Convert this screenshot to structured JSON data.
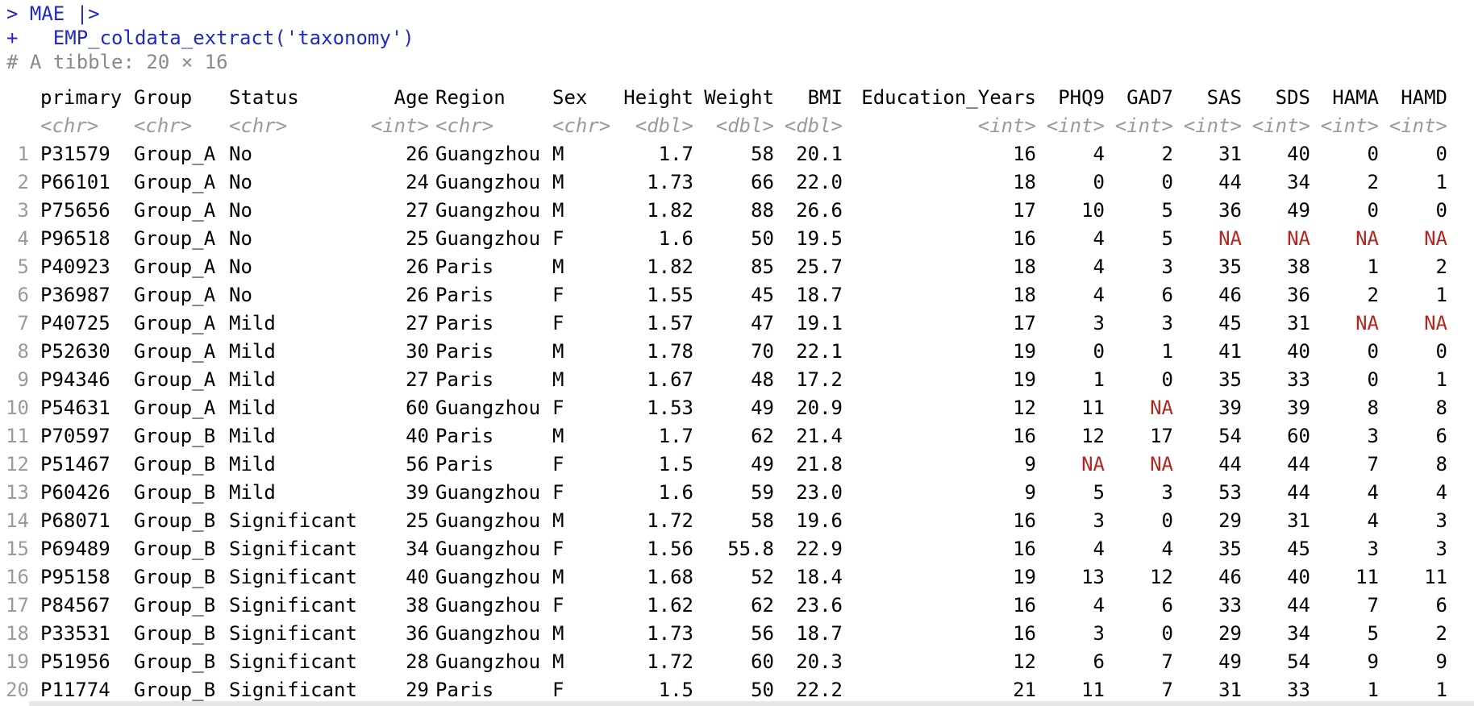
{
  "console": {
    "prompt_line": "> MAE |>",
    "continuation_line": "+   EMP_coldata_extract('taxonomy')",
    "tibble_header": "# A tibble: 20 × 16"
  },
  "table": {
    "columns": [
      "primary",
      "Group",
      "Status",
      "Age",
      "Region",
      "Sex",
      "Height",
      "Weight",
      "BMI",
      "Education_Years",
      "PHQ9",
      "GAD7",
      "SAS",
      "SDS",
      "HAMA",
      "HAMD"
    ],
    "types": [
      "<chr>",
      "<chr>",
      "<chr>",
      "<int>",
      "<chr>",
      "<chr>",
      "<dbl>",
      "<dbl>",
      "<dbl>",
      "<int>",
      "<int>",
      "<int>",
      "<int>",
      "<int>",
      "<int>",
      "<int>"
    ],
    "rows": [
      [
        "1",
        "P31579",
        "Group_A",
        "No",
        "26",
        "Guangzhou",
        "M",
        "1.7",
        "58",
        "20.1",
        "16",
        "4",
        "2",
        "31",
        "40",
        "0",
        "0"
      ],
      [
        "2",
        "P66101",
        "Group_A",
        "No",
        "24",
        "Guangzhou",
        "M",
        "1.73",
        "66",
        "22.0",
        "18",
        "0",
        "0",
        "44",
        "34",
        "2",
        "1"
      ],
      [
        "3",
        "P75656",
        "Group_A",
        "No",
        "27",
        "Guangzhou",
        "M",
        "1.82",
        "88",
        "26.6",
        "17",
        "10",
        "5",
        "36",
        "49",
        "0",
        "0"
      ],
      [
        "4",
        "P96518",
        "Group_A",
        "No",
        "25",
        "Guangzhou",
        "F",
        "1.6",
        "50",
        "19.5",
        "16",
        "4",
        "5",
        "NA",
        "NA",
        "NA",
        "NA"
      ],
      [
        "5",
        "P40923",
        "Group_A",
        "No",
        "26",
        "Paris",
        "M",
        "1.82",
        "85",
        "25.7",
        "18",
        "4",
        "3",
        "35",
        "38",
        "1",
        "2"
      ],
      [
        "6",
        "P36987",
        "Group_A",
        "No",
        "26",
        "Paris",
        "F",
        "1.55",
        "45",
        "18.7",
        "18",
        "4",
        "6",
        "46",
        "36",
        "2",
        "1"
      ],
      [
        "7",
        "P40725",
        "Group_A",
        "Mild",
        "27",
        "Paris",
        "F",
        "1.57",
        "47",
        "19.1",
        "17",
        "3",
        "3",
        "45",
        "31",
        "NA",
        "NA"
      ],
      [
        "8",
        "P52630",
        "Group_A",
        "Mild",
        "30",
        "Paris",
        "M",
        "1.78",
        "70",
        "22.1",
        "19",
        "0",
        "1",
        "41",
        "40",
        "0",
        "0"
      ],
      [
        "9",
        "P94346",
        "Group_A",
        "Mild",
        "27",
        "Paris",
        "M",
        "1.67",
        "48",
        "17.2",
        "19",
        "1",
        "0",
        "35",
        "33",
        "0",
        "1"
      ],
      [
        "10",
        "P54631",
        "Group_A",
        "Mild",
        "60",
        "Guangzhou",
        "F",
        "1.53",
        "49",
        "20.9",
        "12",
        "11",
        "NA",
        "39",
        "39",
        "8",
        "8"
      ],
      [
        "11",
        "P70597",
        "Group_B",
        "Mild",
        "40",
        "Paris",
        "M",
        "1.7",
        "62",
        "21.4",
        "16",
        "12",
        "17",
        "54",
        "60",
        "3",
        "6"
      ],
      [
        "12",
        "P51467",
        "Group_B",
        "Mild",
        "56",
        "Paris",
        "F",
        "1.5",
        "49",
        "21.8",
        "9",
        "NA",
        "NA",
        "44",
        "44",
        "7",
        "8"
      ],
      [
        "13",
        "P60426",
        "Group_B",
        "Mild",
        "39",
        "Guangzhou",
        "F",
        "1.6",
        "59",
        "23.0",
        "9",
        "5",
        "3",
        "53",
        "44",
        "4",
        "4"
      ],
      [
        "14",
        "P68071",
        "Group_B",
        "Significant",
        "25",
        "Guangzhou",
        "M",
        "1.72",
        "58",
        "19.6",
        "16",
        "3",
        "0",
        "29",
        "31",
        "4",
        "3"
      ],
      [
        "15",
        "P69489",
        "Group_B",
        "Significant",
        "34",
        "Guangzhou",
        "F",
        "1.56",
        "55.8",
        "22.9",
        "16",
        "4",
        "4",
        "35",
        "45",
        "3",
        "3"
      ],
      [
        "16",
        "P95158",
        "Group_B",
        "Significant",
        "40",
        "Guangzhou",
        "M",
        "1.68",
        "52",
        "18.4",
        "19",
        "13",
        "12",
        "46",
        "40",
        "11",
        "11"
      ],
      [
        "17",
        "P84567",
        "Group_B",
        "Significant",
        "38",
        "Guangzhou",
        "F",
        "1.62",
        "62",
        "23.6",
        "16",
        "4",
        "6",
        "33",
        "44",
        "7",
        "6"
      ],
      [
        "18",
        "P33531",
        "Group_B",
        "Significant",
        "36",
        "Guangzhou",
        "M",
        "1.73",
        "56",
        "18.7",
        "16",
        "3",
        "0",
        "29",
        "34",
        "5",
        "2"
      ],
      [
        "19",
        "P51956",
        "Group_B",
        "Significant",
        "28",
        "Guangzhou",
        "M",
        "1.72",
        "60",
        "20.3",
        "12",
        "6",
        "7",
        "49",
        "54",
        "9",
        "9"
      ],
      [
        "20",
        "P11774",
        "Group_B",
        "Significant",
        "29",
        "Paris",
        "F",
        "1.5",
        "50",
        "22.2",
        "21",
        "11",
        "7",
        "31",
        "33",
        "1",
        "1"
      ]
    ]
  },
  "colors": {
    "prompt": "#1f2bbf",
    "comment": "#8a8a8a",
    "type_hint": "#9a9a9a",
    "na": "#b3261e"
  }
}
